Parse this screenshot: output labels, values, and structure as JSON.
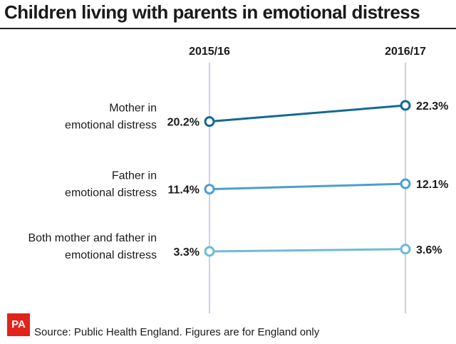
{
  "header": {
    "title": "Children living with parents in emotional distress"
  },
  "footer": {
    "logo_text": "PA",
    "source": "Source: Public Health England. Figures are for England only"
  },
  "colors": {
    "mother": "#136a93",
    "father": "#4b9fcf",
    "both": "#6ebbd8",
    "axis": "#c9d1e3",
    "logo": "#e2231a"
  },
  "chart_data": {
    "type": "line",
    "title": "Children living with parents in emotional distress",
    "categories": [
      "2015/16",
      "2016/17"
    ],
    "unit": "%",
    "series": [
      {
        "name": "Mother in emotional distress",
        "label_lines": [
          "Mother in",
          "emotional distress"
        ],
        "values": [
          20.2,
          22.3
        ],
        "value_labels": [
          "20.2%",
          "22.3%"
        ]
      },
      {
        "name": "Father in emotional distress",
        "label_lines": [
          "Father in",
          "emotional distress"
        ],
        "values": [
          11.4,
          12.1
        ],
        "value_labels": [
          "11.4%",
          "12.1%"
        ]
      },
      {
        "name": "Both mother and father in emotional distress",
        "label_lines": [
          "Both mother and father in",
          "emotional distress"
        ],
        "values": [
          3.3,
          3.6
        ],
        "value_labels": [
          "3.3%",
          "3.6%"
        ]
      }
    ],
    "ylim": [
      0,
      25
    ]
  }
}
